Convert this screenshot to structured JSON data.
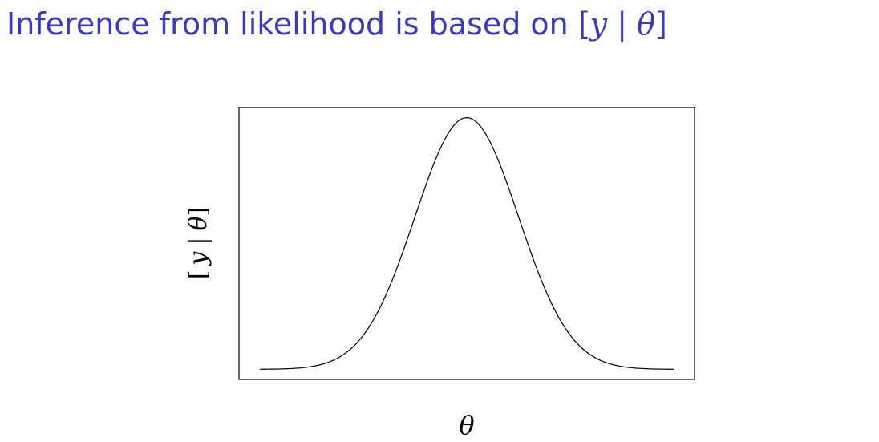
{
  "slide": {
    "title_text": "Inference from likelihood is based on ",
    "title_bracket_open": "[",
    "title_y": "y",
    "title_bar": " | ",
    "title_theta": "θ",
    "title_bracket_close": "]",
    "title_color": "#3b3bb3"
  },
  "chart_data": {
    "type": "line",
    "title": "",
    "xlabel": "θ",
    "ylabel": "[y | θ]",
    "ylabel_parts": {
      "open": "[",
      "y": "y",
      "bar": "|",
      "theta": "θ",
      "close": "]"
    },
    "axes_ticks": false,
    "grid": false,
    "legend": "none",
    "curve": "normal density",
    "series": [
      {
        "x": [
          -4.0,
          -3.5,
          -3.0,
          -2.5,
          -2.0,
          -1.5,
          -1.0,
          -0.5,
          0.0,
          0.5,
          1.0,
          1.5,
          2.0,
          2.5,
          3.0,
          3.5,
          4.0
        ],
        "values": [
          0.0001,
          0.0009,
          0.0044,
          0.0175,
          0.054,
          0.1295,
          0.242,
          0.3521,
          0.3989,
          0.3521,
          0.242,
          0.1295,
          0.054,
          0.0175,
          0.0044,
          0.0009,
          0.0001
        ]
      }
    ],
    "xlim": [
      -4.4,
      4.4
    ],
    "ylim": [
      -0.016,
      0.415
    ],
    "line_color": "#000000"
  }
}
